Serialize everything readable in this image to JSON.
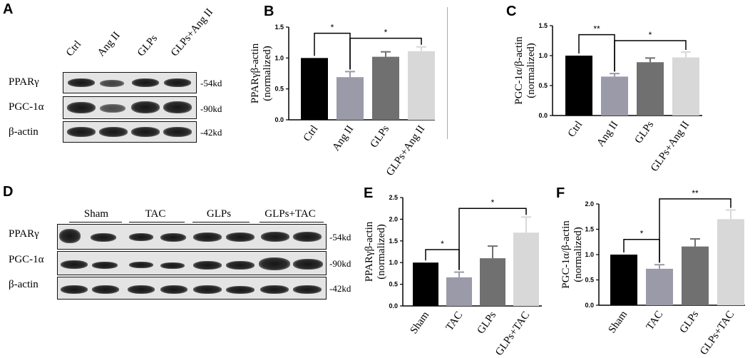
{
  "panels": {
    "A": {
      "letter": "A",
      "lanes": [
        "Ctrl",
        "Ang II",
        "GLPs",
        "GLPs+Ang II"
      ],
      "rows": [
        {
          "protein": "PPARγ",
          "kd": "-54kd"
        },
        {
          "protein": "PGC-1α",
          "kd": "-90kd"
        },
        {
          "protein": "β-actin",
          "kd": "-42kd"
        }
      ]
    },
    "D": {
      "letter": "D",
      "groups": [
        "Sham",
        "TAC",
        "GLPs",
        "GLPs+TAC"
      ],
      "rows": [
        {
          "protein": "PPARγ",
          "kd": "-54kd"
        },
        {
          "protein": "PGC-1α",
          "kd": "-90kd"
        },
        {
          "protein": "β-actin",
          "kd": "-42kd"
        }
      ]
    }
  },
  "chart_data": [
    {
      "letter": "B",
      "type": "bar",
      "categories": [
        "Ctrl",
        "Ang II",
        "GLPs",
        "GLPs+Ang II"
      ],
      "values": [
        1.0,
        0.69,
        1.02,
        1.11
      ],
      "errors": [
        0.0,
        0.09,
        0.08,
        0.07
      ],
      "colors": [
        "#000000",
        "#9a9aa8",
        "#707070",
        "#d8d8d8"
      ],
      "ylabel_line1": "PPARγβ-actin",
      "ylabel_line2": "(normalized)",
      "ylim": [
        0,
        1.5
      ],
      "yticks": [
        "0.0",
        "0.5",
        "1.0",
        "1.5"
      ],
      "annotations": [
        {
          "from": 0,
          "to": 1,
          "label": "*",
          "y": 1.4
        },
        {
          "from": 1,
          "to": 3,
          "label": "*",
          "y": 1.32
        }
      ]
    },
    {
      "letter": "C",
      "type": "bar",
      "categories": [
        "Ctrl",
        "Ang II",
        "GLPs",
        "GLPs+Ang II"
      ],
      "values": [
        1.0,
        0.65,
        0.89,
        0.97
      ],
      "errors": [
        0.0,
        0.05,
        0.07,
        0.09
      ],
      "colors": [
        "#000000",
        "#9a9aa8",
        "#707070",
        "#d8d8d8"
      ],
      "ylabel_line1": "PGC-1α/β-actin",
      "ylabel_line2": "(normalized)",
      "ylim": [
        0,
        1.5
      ],
      "yticks": [
        "0.0",
        "0.5",
        "1.0",
        "1.5"
      ],
      "annotations": [
        {
          "from": 0,
          "to": 1,
          "label": "**",
          "y": 1.35
        },
        {
          "from": 1,
          "to": 3,
          "label": "*",
          "y": 1.25
        }
      ]
    },
    {
      "letter": "E",
      "type": "bar",
      "categories": [
        "Sham",
        "TAC",
        "GLPs",
        "GLPs+TAC"
      ],
      "values": [
        1.0,
        0.66,
        1.1,
        1.69
      ],
      "errors": [
        0.0,
        0.12,
        0.28,
        0.36
      ],
      "colors": [
        "#000000",
        "#9a9aa8",
        "#707070",
        "#d8d8d8"
      ],
      "ylabel_line1": "PPARγβ-actin",
      "ylabel_line2": "(normalized)",
      "ylim": [
        0,
        2.5
      ],
      "yticks": [
        "0.0",
        "0.5",
        "1.0",
        "1.5",
        "2.0",
        "2.5"
      ],
      "annotations": [
        {
          "from": 0,
          "to": 1,
          "label": "*",
          "y": 1.3
        },
        {
          "from": 1,
          "to": 3,
          "label": "*",
          "y": 2.25
        }
      ]
    },
    {
      "letter": "F",
      "type": "bar",
      "categories": [
        "Sham",
        "TAC",
        "GLPs",
        "GLPs+TAC"
      ],
      "values": [
        1.0,
        0.72,
        1.16,
        1.7
      ],
      "errors": [
        0.0,
        0.08,
        0.15,
        0.18
      ],
      "colors": [
        "#000000",
        "#9a9aa8",
        "#707070",
        "#d8d8d8"
      ],
      "ylabel_line1": "PGC-1α/β-actin",
      "ylabel_line2": "(normalized)",
      "ylim": [
        0,
        2.0
      ],
      "yticks": [
        "0.0",
        "0.5",
        "1.0",
        "1.5",
        "2.0"
      ],
      "annotations": [
        {
          "from": 0,
          "to": 1,
          "label": "*",
          "y": 1.3
        },
        {
          "from": 1,
          "to": 3,
          "label": "**",
          "y": 2.1
        }
      ]
    }
  ]
}
